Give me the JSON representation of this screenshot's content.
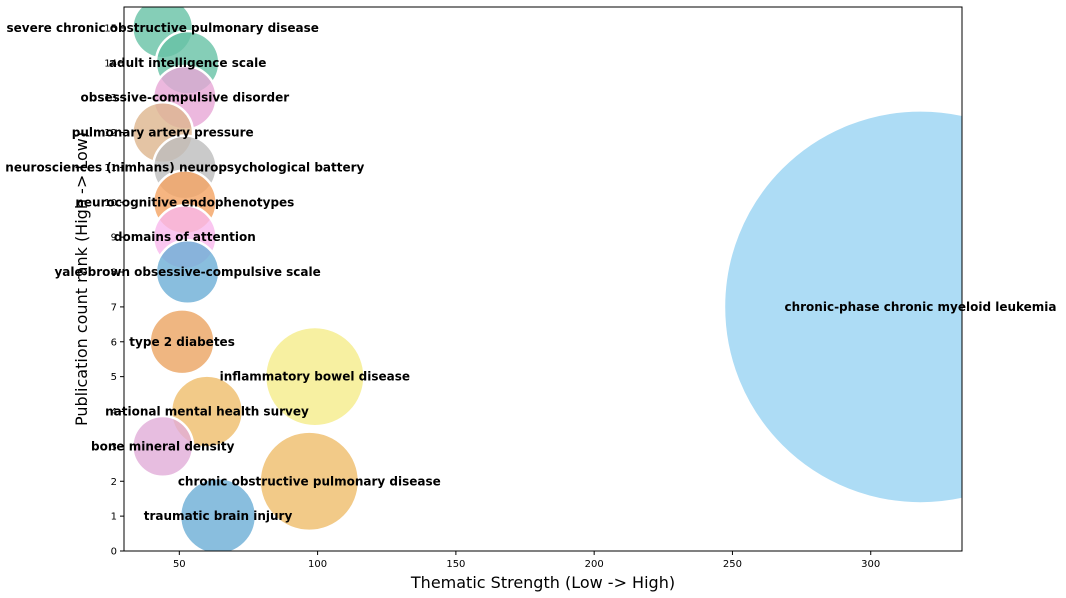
{
  "chart_data": {
    "type": "scatter",
    "title": "",
    "xlabel": "Thematic Strength (Low -> High)",
    "ylabel": "Publication count rank (High -> Low)",
    "xlim": [
      30,
      333
    ],
    "ylim": [
      0,
      15.6
    ],
    "x_ticks": [
      50,
      100,
      150,
      200,
      250,
      300
    ],
    "y_ticks": [
      0,
      1,
      2,
      3,
      4,
      5,
      6,
      7,
      8,
      9,
      10,
      11,
      12,
      13,
      14,
      15
    ],
    "grid": false,
    "legend": "none",
    "points": [
      {
        "label": "severe chronic obstructive pulmonary disease",
        "x": 44,
        "y": 15,
        "size": 44,
        "color": "#66c2a5"
      },
      {
        "label": "adult intelligence scale",
        "x": 53,
        "y": 14,
        "size": 46,
        "color": "#66c2a5"
      },
      {
        "label": "obsessive-compulsive disorder",
        "x": 52,
        "y": 13,
        "size": 46,
        "color": "#e7a6d6"
      },
      {
        "label": "pulmonary artery pressure",
        "x": 44,
        "y": 12,
        "size": 44,
        "color": "#ddb58d"
      },
      {
        "label": "neurosciences (nimhans) neuropsychological battery",
        "x": 52,
        "y": 11,
        "size": 46,
        "color": "#bdbdbd"
      },
      {
        "label": "neurocognitive endophenotypes",
        "x": 52,
        "y": 10,
        "size": 46,
        "color": "#f4a261"
      },
      {
        "label": "domains of attention",
        "x": 52,
        "y": 9,
        "size": 46,
        "color": "#f9b8ec"
      },
      {
        "label": "yale-brown obsessive-compulsive scale",
        "x": 53,
        "y": 8,
        "size": 46,
        "color": "#6baed6"
      },
      {
        "label": "chronic-phase chronic myeloid leukemia",
        "x": 318,
        "y": 7,
        "size": 285,
        "color": "#99d3f2"
      },
      {
        "label": "type 2 diabetes",
        "x": 51,
        "y": 6,
        "size": 47,
        "color": "#eba461"
      },
      {
        "label": "inflammatory bowel disease",
        "x": 99,
        "y": 5,
        "size": 72,
        "color": "#f5ec8a"
      },
      {
        "label": "national mental health survey",
        "x": 60,
        "y": 4,
        "size": 52,
        "color": "#efbd6a"
      },
      {
        "label": "bone mineral density",
        "x": 44,
        "y": 3,
        "size": 44,
        "color": "#e1acd8"
      },
      {
        "label": "chronic obstructive pulmonary disease",
        "x": 97,
        "y": 2,
        "size": 72,
        "color": "#efbd6a"
      },
      {
        "label": "traumatic brain injury",
        "x": 64,
        "y": 1,
        "size": 55,
        "color": "#6baed6"
      }
    ]
  }
}
